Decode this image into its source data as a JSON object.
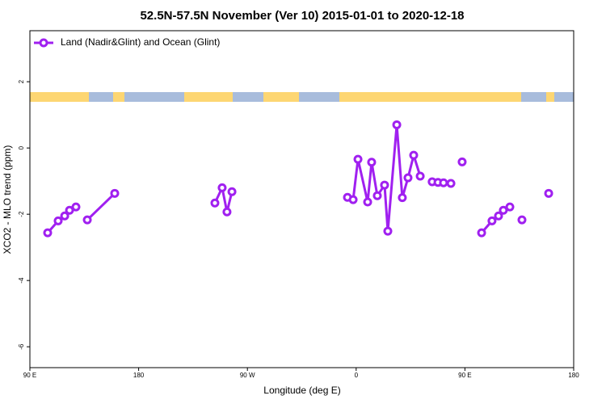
{
  "chart_data": {
    "type": "line",
    "title": "52.5N-57.5N November (Ver 10)   2015-01-01 to 2020-12-18",
    "x_label": "Longitude (deg E)",
    "y_label": "XCO2 - MLO trend (ppm)",
    "xlim": [
      90,
      540
    ],
    "xticks": [
      {
        "value": 90,
        "label": "90 E"
      },
      {
        "value": 180,
        "label": "180"
      },
      {
        "value": 270,
        "label": "90 W"
      },
      {
        "value": 360,
        "label": "0"
      },
      {
        "value": 450,
        "label": "90 E"
      },
      {
        "value": 540,
        "label": "180"
      }
    ],
    "ylim": [
      -6.63,
      3.54
    ],
    "yticks": [
      2,
      0,
      -2,
      -4,
      -6
    ],
    "legend": "top-left",
    "series": [
      {
        "name": "Land (Nadir&Glint) and Ocean (Glint)",
        "color": "#a020f0",
        "x": [
          104.7,
          113.4,
          118.8,
          122.8,
          128.1,
          null,
          137.5,
          160.2,
          null,
          243.1,
          249.1,
          253.1,
          257.2,
          null,
          352.8,
          357.5,
          361.5,
          369.5,
          372.8,
          377.5,
          383.5,
          386.2,
          393.6,
          398.2,
          402.9,
          407.6,
          413.0,
          null,
          422.9,
          427.7,
          432.3,
          438.4,
          null,
          447.7,
          null,
          463.8,
          472.4,
          477.8,
          481.8,
          487.2,
          null,
          497.2,
          null,
          519.3
        ],
        "values": [
          -2.56,
          -2.2,
          -2.05,
          -1.88,
          -1.78,
          null,
          -2.17,
          -1.37,
          null,
          -1.66,
          -1.2,
          -1.93,
          -1.32,
          null,
          -1.49,
          -1.56,
          -0.34,
          -1.63,
          -0.43,
          -1.44,
          -1.12,
          -2.51,
          0.7,
          -1.5,
          -0.9,
          -0.22,
          -0.85,
          null,
          -1.02,
          -1.04,
          -1.05,
          -1.07,
          null,
          -0.42,
          null,
          -2.56,
          -2.2,
          -2.05,
          -1.88,
          -1.78,
          null,
          -2.17,
          null,
          -1.37
        ]
      }
    ]
  }
}
